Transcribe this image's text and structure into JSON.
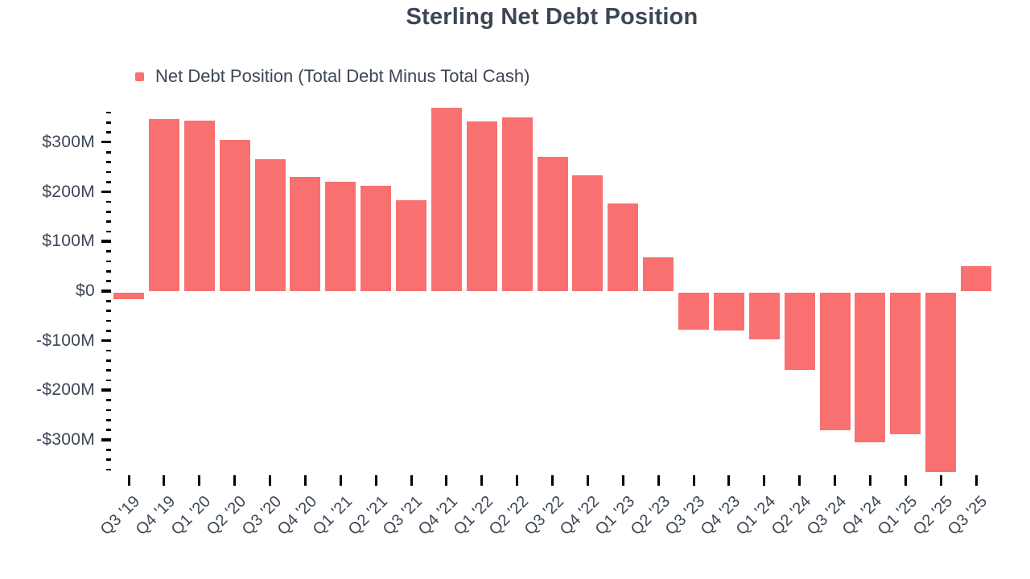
{
  "title": "Sterling Net Debt Position",
  "legend": {
    "label": "Net Debt Position (Total Debt Minus Total Cash)"
  },
  "colors": {
    "bar": "#F97070",
    "text": "#3C4654",
    "tick": "#000000",
    "background": "#FFFFFF"
  },
  "chart_data": {
    "type": "bar",
    "title": "Sterling Net Debt Position",
    "xlabel": "",
    "ylabel": "",
    "unit": "USD millions",
    "categories": [
      "Q3 '19",
      "Q4 '19",
      "Q1 '20",
      "Q2 '20",
      "Q3 '20",
      "Q4 '20",
      "Q1 '21",
      "Q2 '21",
      "Q3 '21",
      "Q4 '21",
      "Q1 '22",
      "Q2 '22",
      "Q3 '22",
      "Q4 '22",
      "Q1 '23",
      "Q2 '23",
      "Q3 '23",
      "Q4 '23",
      "Q1 '24",
      "Q2 '24",
      "Q3 '24",
      "Q4 '24",
      "Q1 '25",
      "Q2 '25",
      "Q3 '25"
    ],
    "values": [
      -13,
      347,
      343,
      305,
      266,
      230,
      220,
      212,
      183,
      370,
      342,
      350,
      270,
      233,
      176,
      68,
      -75,
      -76,
      -94,
      -156,
      -277,
      -301,
      -285,
      -362,
      51
    ],
    "series_name": "Net Debt Position (Total Debt Minus Total Cash)",
    "y_major_ticks": [
      300,
      200,
      100,
      0,
      -100,
      -200,
      -300
    ],
    "y_tick_labels": [
      "$300M",
      "$200M",
      "$100M",
      "$0",
      "-$100M",
      "-$200M",
      "-$300M"
    ],
    "y_minor_tick_step": 20,
    "y_minor_tick_range": [
      -360,
      360
    ],
    "ylim": [
      -372,
      372
    ],
    "grid": false,
    "legend_position": "top-left",
    "bar_color": "#F97070"
  }
}
